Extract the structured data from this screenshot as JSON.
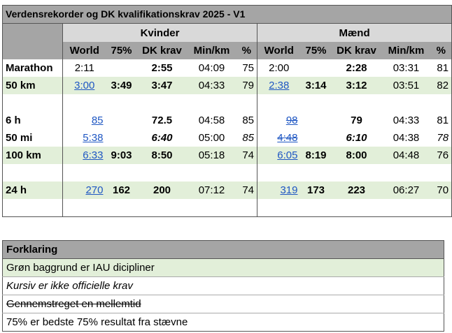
{
  "title": "Verdensrekorder og DK kvalifikationskrav 2025 - V1",
  "groups": {
    "women": "Kvinder",
    "men": "Mænd"
  },
  "columns": [
    "World",
    "75%",
    "DK krav",
    "Min/km",
    "%"
  ],
  "rows": [
    {
      "label": "Marathon",
      "green": false,
      "w": {
        "world": "2:11",
        "p75": "",
        "dk": "2:55",
        "minkm": "04:09",
        "pct": "75"
      },
      "m": {
        "world": "2:00",
        "p75": "",
        "dk": "2:28",
        "minkm": "03:31",
        "pct": "81"
      }
    },
    {
      "label": "50 km",
      "green": true,
      "w": {
        "world": "3:00",
        "p75": "3:49",
        "dk": "3:47",
        "minkm": "04:33",
        "pct": "79"
      },
      "m": {
        "world": "2:38",
        "p75": "3:14",
        "dk": "3:12",
        "minkm": "03:51",
        "pct": "82"
      }
    },
    {
      "label": "6 h",
      "green": false,
      "w": {
        "world": "85",
        "p75": "",
        "dk": "72.5",
        "minkm": "04:58",
        "pct": "85"
      },
      "m": {
        "world": "98",
        "p75": "",
        "dk": "79",
        "minkm": "04:33",
        "pct": "81"
      }
    },
    {
      "label": "50 mi",
      "green": false,
      "w": {
        "world": "5:38",
        "p75": "",
        "dk": "6:40",
        "minkm": "05:00",
        "pct": "85"
      },
      "m": {
        "world": "4:48",
        "p75": "",
        "dk": "6:10",
        "minkm": "04:38",
        "pct": "78"
      }
    },
    {
      "label": "100 km",
      "green": true,
      "w": {
        "world": "6:33",
        "p75": "9:03",
        "dk": "8:50",
        "minkm": "05:18",
        "pct": "74"
      },
      "m": {
        "world": "6:05",
        "p75": "8:19",
        "dk": "8:00",
        "minkm": "04:48",
        "pct": "76"
      }
    },
    {
      "label": "24 h",
      "green": true,
      "w": {
        "world": "270",
        "p75": "162",
        "dk": "200",
        "minkm": "07:12",
        "pct": "74"
      },
      "m": {
        "world": "319",
        "p75": "173",
        "dk": "223",
        "minkm": "06:27",
        "pct": "70"
      }
    }
  ],
  "legend": {
    "title": "Forklaring",
    "items": [
      "Grøn baggrund er IAU dicipliner",
      "Kursiv er ikke officielle krav",
      "Gennemstreget en mellemtid",
      "75% er bedste 75% resultat fra stævne"
    ]
  },
  "colors": {
    "header_bg": "#a5a5a5",
    "group_bg": "#d9d9d9",
    "green_bg": "#e2efd9",
    "link": "#1f57c3"
  }
}
